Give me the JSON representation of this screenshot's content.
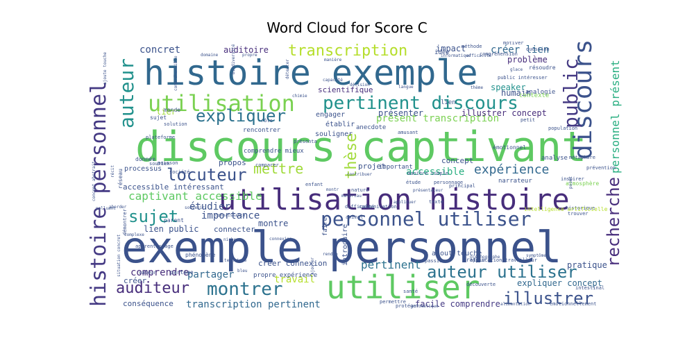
{
  "chart_data": {
    "type": "wordcloud",
    "title": "Word Cloud for Score C",
    "words": [
      {
        "text": "discours captivant",
        "color": "#5ec962"
      },
      {
        "text": "exemple personnel",
        "color": "#3b528b"
      },
      {
        "text": "histoire exemple",
        "color": "#31688e"
      },
      {
        "text": "utilisation histoire",
        "color": "#472d7b"
      },
      {
        "text": "utiliser",
        "color": "#5ec962"
      },
      {
        "text": "histoire personnel",
        "color": "#443983"
      },
      {
        "text": "personnel utiliser",
        "color": "#3b528b"
      },
      {
        "text": "utilisation",
        "color": "#7ad151"
      },
      {
        "text": "pertinent discours",
        "color": "#21918c"
      },
      {
        "text": "discours",
        "color": "#3b528b"
      },
      {
        "text": "public",
        "color": "#443983"
      },
      {
        "text": "auteur",
        "color": "#21918c"
      },
      {
        "text": "montrer",
        "color": "#2c728e"
      },
      {
        "text": "expliquer",
        "color": "#2c728e"
      },
      {
        "text": "locuteur",
        "color": "#3b528b"
      },
      {
        "text": "recherche",
        "color": "#472d7b"
      },
      {
        "text": "transcription",
        "color": "#b5de2b"
      },
      {
        "text": "auteur utiliser",
        "color": "#2c728e"
      },
      {
        "text": "illustrer",
        "color": "#3b528b"
      },
      {
        "text": "auditeur",
        "color": "#472d7b"
      },
      {
        "text": "sujet",
        "color": "#21918c"
      },
      {
        "text": "thèse",
        "color": "#a0da39"
      },
      {
        "text": "mettre",
        "color": "#a0da39"
      },
      {
        "text": "personnel présent",
        "color": "#28ae80"
      },
      {
        "text": "expérience",
        "color": "#31688e"
      },
      {
        "text": "captivant accessible",
        "color": "#5ec962"
      },
      {
        "text": "comprendre",
        "color": "#472d7b"
      },
      {
        "text": "partager",
        "color": "#31688e"
      },
      {
        "text": "travail",
        "color": "#b5de2b"
      },
      {
        "text": "pertinent",
        "color": "#2c728e"
      },
      {
        "text": "importance",
        "color": "#3b528b"
      },
      {
        "text": "présent transcription",
        "color": "#7ad151"
      },
      {
        "text": "transcription pertinent",
        "color": "#31688e"
      },
      {
        "text": "concret",
        "color": "#3b528b"
      },
      {
        "text": "auditoire",
        "color": "#472d7b"
      },
      {
        "text": "créer lien",
        "color": "#31688e"
      },
      {
        "text": "impact",
        "color": "#3b528b"
      },
      {
        "text": "humain",
        "color": "#3b528b"
      },
      {
        "text": "problème",
        "color": "#472d7b"
      },
      {
        "text": "accessible",
        "color": "#28ae80"
      },
      {
        "text": "étudier",
        "color": "#3b528b"
      },
      {
        "text": "lien public",
        "color": "#3b528b"
      },
      {
        "text": "montre",
        "color": "#3b528b"
      },
      {
        "text": "expliquer concept",
        "color": "#31688e"
      },
      {
        "text": "pratique",
        "color": "#3b528b"
      },
      {
        "text": "facile comprendre",
        "color": "#443983"
      },
      {
        "text": "conséquence",
        "color": "#3b528b"
      },
      {
        "text": "créer connexion",
        "color": "#3b528b"
      },
      {
        "text": "ajout touche",
        "color": "#3b528b"
      },
      {
        "text": "illustrer concept",
        "color": "#472d7b"
      },
      {
        "text": "présenter",
        "color": "#3b528b"
      },
      {
        "text": "scientifique",
        "color": "#472d7b"
      },
      {
        "text": "speaker",
        "color": "#21918c"
      },
      {
        "text": "lier",
        "color": "#a0da39"
      },
      {
        "text": "projet",
        "color": "#3b528b"
      },
      {
        "text": "propos",
        "color": "#3b528b"
      },
      {
        "text": "concept",
        "color": "#3b528b"
      },
      {
        "text": "connecter",
        "color": "#3b528b"
      },
      {
        "text": "accessible intéressant",
        "color": "#3b528b"
      },
      {
        "text": "processus",
        "color": "#3b528b"
      },
      {
        "text": "engager",
        "color": "#3b528b"
      },
      {
        "text": "établir",
        "color": "#3b528b"
      },
      {
        "text": "souligner",
        "color": "#3b528b"
      },
      {
        "text": "anecdote",
        "color": "#3b528b"
      },
      {
        "text": "rencontrer",
        "color": "#3b528b"
      },
      {
        "text": "analogie",
        "color": "#3b528b"
      },
      {
        "text": "contexte",
        "color": "#7ad151"
      },
      {
        "text": "narrateur",
        "color": "#3b528b"
      },
      {
        "text": "important",
        "color": "#3b528b"
      },
      {
        "text": "idée",
        "color": "#3b528b"
      },
      {
        "text": "lien",
        "color": "#3b528b"
      },
      {
        "text": "créer",
        "color": "#3b528b"
      },
      {
        "text": "comprendre mieux",
        "color": "#3b528b"
      },
      {
        "text": "analyse",
        "color": "#3b528b"
      },
      {
        "text": "émotionnel",
        "color": "#3b528b"
      },
      {
        "text": "atmosphère",
        "color": "#7ad151"
      },
      {
        "text": "prévention",
        "color": "#3b528b"
      },
      {
        "text": "inspirer",
        "color": "#3b528b"
      },
      {
        "text": "métaphore",
        "color": "#3b528b"
      },
      {
        "text": "historique",
        "color": "#3b528b"
      },
      {
        "text": "trouver",
        "color": "#3b528b"
      },
      {
        "text": "faire",
        "color": "#3b528b"
      },
      {
        "text": "introduire",
        "color": "#3b528b"
      },
      {
        "text": "communication",
        "color": "#3b528b"
      },
      {
        "text": "difficulté",
        "color": "#3b528b"
      },
      {
        "text": "texte",
        "color": "#3b528b"
      },
      {
        "text": "personnage",
        "color": "#3b528b"
      },
      {
        "text": "principal",
        "color": "#3b528b"
      },
      {
        "text": "application travailleur",
        "color": "#3b528b"
      },
      {
        "text": "découverte",
        "color": "#3b528b"
      },
      {
        "text": "orateur",
        "color": "#3b528b"
      },
      {
        "text": "passion",
        "color": "#3b528b"
      },
      {
        "text": "propre expérience",
        "color": "#3b528b"
      },
      {
        "text": "parent",
        "color": "#3b528b"
      },
      {
        "text": "apprentissage",
        "color": "#3b528b"
      },
      {
        "text": "phénomène",
        "color": "#3b528b"
      },
      {
        "text": "partage",
        "color": "#3b528b"
      },
      {
        "text": "valeur",
        "color": "#3b528b"
      },
      {
        "text": "santé",
        "color": "#3b528b"
      },
      {
        "text": "permettre",
        "color": "#3b528b"
      },
      {
        "text": "protéger",
        "color": "#3b528b"
      },
      {
        "text": "intelligence artificielle",
        "color": "#b5de2b"
      },
      {
        "text": "émotionnellement",
        "color": "#3b528b"
      },
      {
        "text": "intestinal",
        "color": "#3b528b"
      },
      {
        "text": "question",
        "color": "#3b528b"
      },
      {
        "text": "motiver",
        "color": "#3b528b"
      },
      {
        "text": "méthode",
        "color": "#3b528b"
      },
      {
        "text": "compréhension",
        "color": "#3b528b"
      },
      {
        "text": "informatique",
        "color": "#3b528b"
      },
      {
        "text": "efficacité",
        "color": "#3b528b"
      },
      {
        "text": "public intéresser",
        "color": "#3b528b"
      },
      {
        "text": "résoudre",
        "color": "#3b528b"
      },
      {
        "text": "manière",
        "color": "#3b528b"
      },
      {
        "text": "domaine",
        "color": "#3b528b"
      },
      {
        "text": "propre",
        "color": "#3b528b"
      },
      {
        "text": "détecter",
        "color": "#3b528b"
      },
      {
        "text": "chimie",
        "color": "#3b528b"
      },
      {
        "text": "décision",
        "color": "#3b528b"
      },
      {
        "text": "langue",
        "color": "#3b528b"
      },
      {
        "text": "thème",
        "color": "#3b528b"
      },
      {
        "text": "glace",
        "color": "#3b528b"
      },
      {
        "text": "monde",
        "color": "#3b528b"
      },
      {
        "text": "sujet",
        "color": "#3b528b"
      },
      {
        "text": "solution",
        "color": "#3b528b"
      },
      {
        "text": "plateforme",
        "color": "#3b528b"
      },
      {
        "text": "rôle",
        "color": "#3b528b"
      },
      {
        "text": "présenta",
        "color": "#3b528b"
      },
      {
        "text": "amusant",
        "color": "#3b528b"
      },
      {
        "text": "petit",
        "color": "#3b528b"
      },
      {
        "text": "population",
        "color": "#3b528b"
      },
      {
        "text": "société",
        "color": "#3b528b"
      },
      {
        "text": "comparer",
        "color": "#3b528b"
      },
      {
        "text": "étude",
        "color": "#3b528b"
      },
      {
        "text": "manière simple",
        "color": "#3b528b"
      },
      {
        "text": "soutien",
        "color": "#3b528b"
      },
      {
        "text": "donnée",
        "color": "#3b528b"
      },
      {
        "text": "poisson",
        "color": "#3b528b"
      },
      {
        "text": "contribuer",
        "color": "#3b528b"
      },
      {
        "text": "enfant",
        "color": "#3b528b"
      },
      {
        "text": "nature",
        "color": "#3b528b"
      },
      {
        "text": "animal",
        "color": "#3b528b"
      },
      {
        "text": "appliquer",
        "color": "#3b528b"
      },
      {
        "text": "présentateur",
        "color": "#3b528b"
      },
      {
        "text": "océanographe",
        "color": "#3b528b"
      },
      {
        "text": "symptôme",
        "color": "#3b528b"
      },
      {
        "text": "point",
        "color": "#3b528b"
      },
      {
        "text": "aborder",
        "color": "#3b528b"
      },
      {
        "text": "souvenir",
        "color": "#3b528b"
      },
      {
        "text": "connaissance",
        "color": "#3b528b"
      },
      {
        "text": "niche",
        "color": "#3b528b"
      },
      {
        "text": "connexion",
        "color": "#3b528b"
      },
      {
        "text": "montr",
        "color": "#3b528b"
      },
      {
        "text": "matériau",
        "color": "#3b528b"
      },
      {
        "text": "rendre",
        "color": "#3b528b"
      },
      {
        "text": "technique",
        "color": "#3b528b"
      },
      {
        "text": "bleu",
        "color": "#3b528b"
      },
      {
        "text": "ajouter",
        "color": "#3b528b"
      },
      {
        "text": "alimentation",
        "color": "#3b528b"
      },
      {
        "text": "automatique",
        "color": "#3b528b"
      },
      {
        "text": "réseau",
        "color": "#3b528b"
      },
      {
        "text": "complexe",
        "color": "#3b528b"
      },
      {
        "text": "polluant",
        "color": "#3b528b"
      },
      {
        "text": "récit",
        "color": "#3b528b"
      },
      {
        "text": "concept abstrait",
        "color": "#3b528b"
      },
      {
        "text": "situation concret",
        "color": "#3b528b"
      },
      {
        "text": "démontrer",
        "color": "#3b528b"
      },
      {
        "text": "compréhensible",
        "color": "#3b528b"
      },
      {
        "text": "biodiversité",
        "color": "#3b528b"
      },
      {
        "text": "capacité",
        "color": "#3b528b"
      },
      {
        "text": "ajoute touche",
        "color": "#3b528b"
      },
      {
        "text": "touche humaine",
        "color": "#3b528b"
      }
    ]
  }
}
